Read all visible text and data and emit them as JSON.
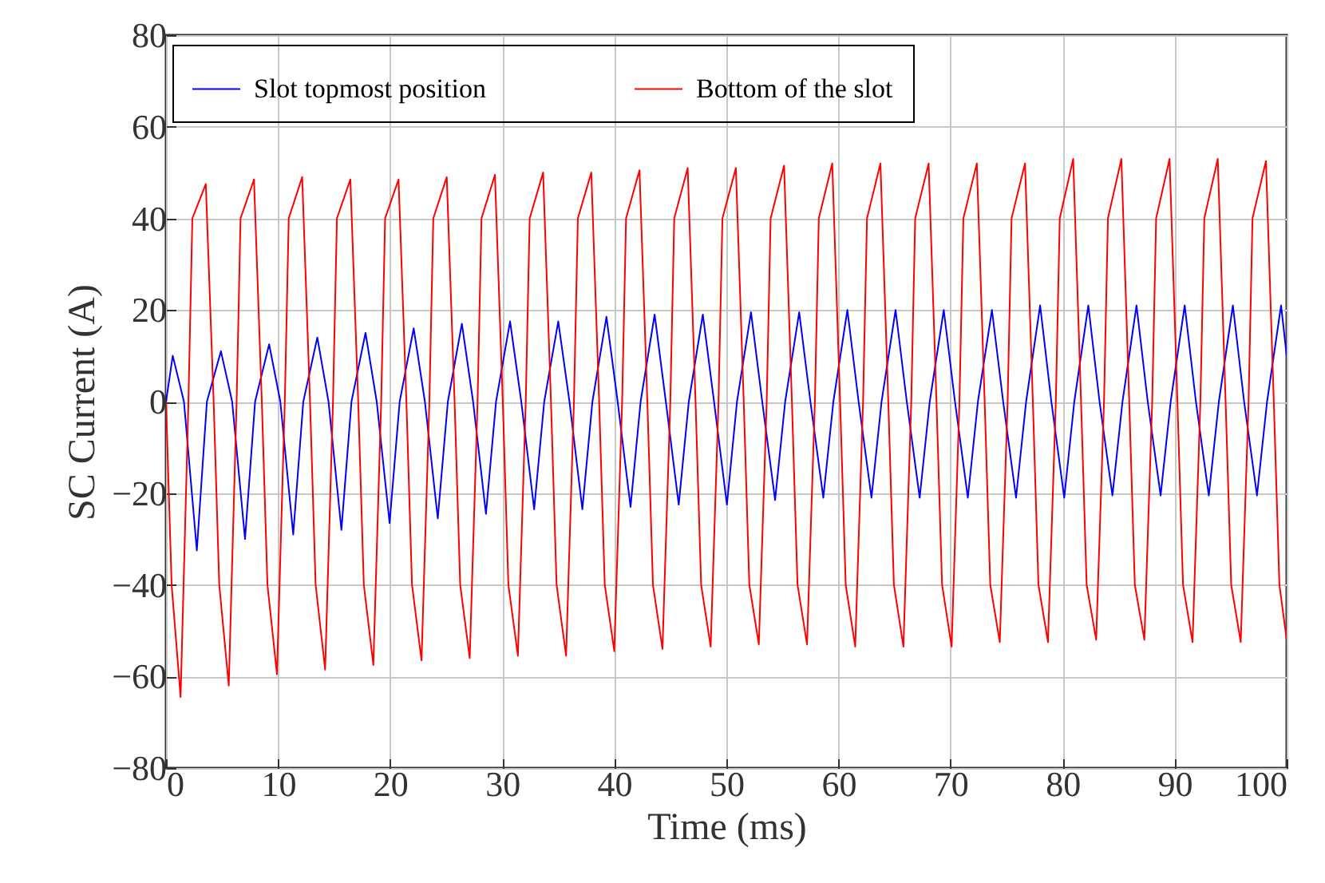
{
  "chart_data": {
    "type": "line",
    "xlabel": "Time (ms)",
    "ylabel": "SC Current (A)",
    "xlim": [
      0,
      100
    ],
    "xticks": [
      0,
      10,
      20,
      30,
      40,
      50,
      60,
      70,
      80,
      90,
      100
    ],
    "ylim": [
      -80,
      80
    ],
    "yticks": [
      -80,
      -60,
      -40,
      -20,
      0,
      20,
      40,
      60,
      80
    ],
    "grid": true,
    "legend": "top left",
    "line_style": "solid",
    "series": [
      {
        "name": "Slot topmost position",
        "color": "#0000ff",
        "x": [
          0,
          0.6,
          1.6,
          2.75,
          3.65,
          4.9,
          5.9,
          7.05,
          7.95,
          9.2,
          10.2,
          11.35,
          12.25,
          13.5,
          14.5,
          15.65,
          16.55,
          17.8,
          18.8,
          19.95,
          20.85,
          22.1,
          23.1,
          24.25,
          25.15,
          26.4,
          27.4,
          28.55,
          29.45,
          30.7,
          31.7,
          32.85,
          33.75,
          35.0,
          36.0,
          37.15,
          38.05,
          39.3,
          40.3,
          41.45,
          42.35,
          43.6,
          44.6,
          45.75,
          46.65,
          47.9,
          48.9,
          50.05,
          50.95,
          52.2,
          53.2,
          54.35,
          55.25,
          56.5,
          57.5,
          58.65,
          59.55,
          60.8,
          61.8,
          62.95,
          63.85,
          65.1,
          66.1,
          67.25,
          68.15,
          69.4,
          70.4,
          71.55,
          72.45,
          73.7,
          74.7,
          75.85,
          76.75,
          78.0,
          79.0,
          80.15,
          81.05,
          82.3,
          83.3,
          84.45,
          85.35,
          86.6,
          87.6,
          88.75,
          89.65,
          90.9,
          91.9,
          93.05,
          93.95,
          95.2,
          96.2,
          97.35,
          98.25,
          99.5,
          100
        ],
        "values": [
          0,
          10,
          0,
          -32.5,
          0,
          11,
          0,
          -30,
          0,
          12.5,
          0,
          -29,
          0,
          14,
          0,
          -28,
          0,
          15,
          0,
          -26.5,
          0,
          16,
          0,
          -25.5,
          0,
          17,
          0,
          -24.5,
          0,
          17.5,
          0,
          -23.5,
          0,
          17.5,
          0,
          -23.5,
          0,
          18.5,
          0,
          -23,
          0,
          19,
          0,
          -22.5,
          0,
          19,
          0,
          -22.5,
          0,
          19.5,
          0,
          -21.5,
          0,
          19.5,
          0,
          -21,
          0,
          20,
          0,
          -21,
          0,
          20,
          0,
          -21,
          0,
          20,
          0,
          -21,
          0,
          20,
          0,
          -21,
          0,
          21,
          0,
          -21,
          0,
          21,
          0,
          -20.5,
          0,
          21,
          0,
          -20.5,
          0,
          21,
          0,
          -20.5,
          0,
          21,
          0,
          -20.5,
          0,
          21,
          10
        ]
      },
      {
        "name": "Bottom of the slot",
        "color": "#ff0000",
        "x": [
          0,
          0.5,
          1.3,
          2.0,
          2.35,
          3.55,
          4.25,
          4.75,
          5.6,
          6.3,
          6.65,
          7.85,
          8.55,
          9.05,
          9.9,
          10.6,
          10.95,
          12.15,
          12.85,
          13.35,
          14.2,
          14.9,
          15.25,
          16.45,
          17.15,
          17.65,
          18.5,
          19.2,
          19.55,
          20.75,
          21.45,
          21.95,
          22.8,
          23.5,
          23.85,
          25.05,
          25.75,
          26.25,
          27.1,
          27.8,
          28.15,
          29.35,
          30.05,
          30.55,
          31.4,
          32.1,
          32.45,
          33.65,
          34.35,
          34.85,
          35.7,
          36.4,
          36.75,
          37.95,
          38.65,
          39.15,
          40.0,
          40.7,
          41.05,
          42.25,
          42.95,
          43.45,
          44.3,
          45.0,
          45.35,
          46.55,
          47.25,
          47.75,
          48.6,
          49.3,
          49.65,
          50.85,
          51.55,
          52.05,
          52.9,
          53.6,
          53.95,
          55.15,
          55.85,
          56.35,
          57.2,
          57.9,
          58.25,
          59.45,
          60.15,
          60.65,
          61.5,
          62.2,
          62.55,
          63.75,
          64.45,
          64.95,
          65.8,
          66.5,
          66.85,
          68.05,
          68.75,
          69.25,
          70.1,
          70.8,
          71.15,
          72.35,
          73.05,
          73.55,
          74.4,
          75.1,
          75.45,
          76.65,
          77.35,
          77.85,
          78.7,
          79.4,
          79.75,
          80.95,
          81.65,
          82.15,
          83.0,
          83.7,
          84.05,
          85.25,
          85.95,
          86.45,
          87.3,
          88.0,
          88.35,
          89.55,
          90.25,
          90.75,
          91.6,
          92.3,
          92.65,
          93.85,
          94.55,
          95.05,
          95.9,
          96.6,
          96.95,
          98.15,
          98.85,
          99.35,
          100
        ],
        "values": [
          0,
          -40,
          -64.5,
          0,
          40,
          47.5,
          0,
          -40,
          -62,
          0,
          40,
          48.5,
          0,
          -40,
          -59.5,
          0,
          40,
          49,
          0,
          -40,
          -58.5,
          0,
          40,
          48.5,
          0,
          -40,
          -57.5,
          0,
          40,
          48.5,
          0,
          -40,
          -56.5,
          0,
          40,
          49,
          0,
          -40,
          -56,
          0,
          40,
          49.5,
          0,
          -40,
          -55.5,
          0,
          40,
          50,
          0,
          -40,
          -55.5,
          0,
          40,
          50,
          0,
          -40,
          -54.5,
          0,
          40,
          50.5,
          0,
          -40,
          -54,
          0,
          40,
          51,
          0,
          -40,
          -53.5,
          0,
          40,
          51,
          0,
          -40,
          -53,
          0,
          40,
          51.5,
          0,
          -40,
          -53,
          0,
          40,
          52,
          0,
          -40,
          -53.5,
          0,
          40,
          52,
          0,
          -40,
          -53.5,
          0,
          40,
          52,
          0,
          -40,
          -53.5,
          0,
          40,
          52,
          0,
          -40,
          -52.5,
          0,
          40,
          52,
          0,
          -40,
          -52.5,
          0,
          40,
          53,
          0,
          -40,
          -52,
          0,
          40,
          53,
          0,
          -40,
          -52,
          0,
          40,
          53,
          0,
          -40,
          -52.5,
          0,
          40,
          53,
          0,
          -40,
          -52.5,
          0,
          40,
          52.5,
          0,
          -40,
          -52
        ]
      }
    ]
  }
}
